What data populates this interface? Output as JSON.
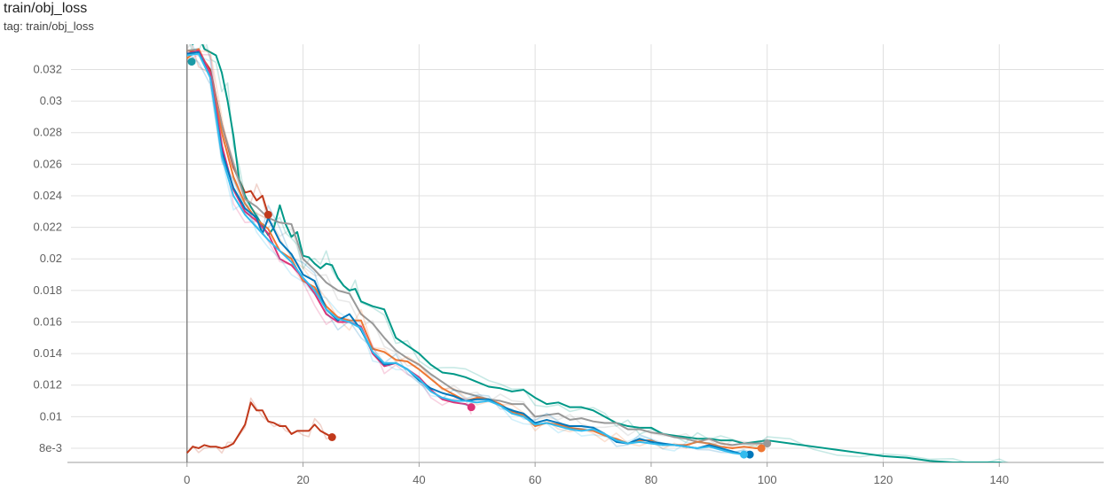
{
  "header": {
    "title": "train/obj_loss",
    "tag": "tag: train/obj_loss"
  },
  "chart_data": {
    "type": "line",
    "title": "train/obj_loss",
    "xlabel": "",
    "ylabel": "",
    "xlim": [
      -20,
      158
    ],
    "ylim": [
      0.0071,
      0.0336
    ],
    "grid": true,
    "legend": "none",
    "x_ticks": [
      0,
      20,
      40,
      60,
      80,
      100,
      120,
      140
    ],
    "y_ticks": [
      0.008,
      0.01,
      0.012,
      0.014,
      0.016,
      0.018,
      0.02,
      0.022,
      0.024,
      0.026,
      0.028,
      0.03,
      0.032
    ],
    "y_tick_labels": [
      "8e-3",
      "0.01",
      "0.012",
      "0.014",
      "0.016",
      "0.018",
      "0.02",
      "0.022",
      "0.024",
      "0.026",
      "0.028",
      "0.03",
      "0.032"
    ],
    "series": [
      {
        "color": "#c1391b",
        "x": [
          0,
          1,
          2,
          3,
          4,
          5,
          6,
          7,
          8,
          9,
          10,
          11,
          12,
          13,
          14,
          15,
          16,
          17,
          18,
          19,
          20,
          21,
          22,
          23,
          24,
          25
        ],
        "y": [
          0.0077,
          0.0081,
          0.008,
          0.0082,
          0.0081,
          0.0081,
          0.008,
          0.0081,
          0.0083,
          0.0089,
          0.0095,
          0.0109,
          0.0104,
          0.0104,
          0.0097,
          0.0096,
          0.0094,
          0.0094,
          0.0089,
          0.0091,
          0.0091,
          0.0091,
          0.0095,
          0.0091,
          0.0089,
          0.0087
        ]
      },
      {
        "color": "#c1391b",
        "x": [
          0,
          2,
          4,
          6,
          8,
          10,
          11,
          12,
          13,
          14
        ],
        "y": [
          0.0332,
          0.0331,
          0.032,
          0.0285,
          0.0258,
          0.0242,
          0.0243,
          0.0237,
          0.024,
          0.0228
        ]
      },
      {
        "color": "#009988",
        "x": [
          0,
          1,
          2,
          3,
          4,
          5,
          6,
          7,
          8,
          9,
          10,
          11,
          12,
          13,
          14,
          15,
          16,
          17,
          18,
          19,
          20,
          21,
          22,
          23,
          24,
          25,
          26,
          27,
          28,
          29,
          30,
          32,
          34,
          36,
          38,
          40,
          42,
          44,
          46,
          48,
          50,
          52,
          54,
          56,
          58,
          60,
          62,
          64,
          66,
          68,
          70,
          72,
          74,
          76,
          78,
          80,
          82,
          84,
          86,
          88,
          90,
          92,
          94,
          96,
          98,
          100,
          104,
          108,
          112,
          116,
          120,
          124,
          128,
          132,
          136,
          140,
          144,
          146,
          148,
          149
        ],
        "y": [
          0.034,
          0.0336,
          0.0342,
          0.0333,
          0.0331,
          0.0329,
          0.0318,
          0.03,
          0.0278,
          0.025,
          0.024,
          0.0233,
          0.0227,
          0.0221,
          0.0215,
          0.022,
          0.0234,
          0.0222,
          0.0214,
          0.0217,
          0.0202,
          0.0201,
          0.0197,
          0.0194,
          0.0197,
          0.0196,
          0.0188,
          0.0183,
          0.018,
          0.0181,
          0.0173,
          0.017,
          0.0168,
          0.015,
          0.0145,
          0.014,
          0.0133,
          0.0128,
          0.0127,
          0.0125,
          0.0122,
          0.0119,
          0.0118,
          0.0116,
          0.0117,
          0.0112,
          0.0108,
          0.0109,
          0.0106,
          0.0106,
          0.0104,
          0.01,
          0.0096,
          0.0094,
          0.0093,
          0.0093,
          0.0089,
          0.0088,
          0.0087,
          0.0086,
          0.0086,
          0.0085,
          0.0085,
          0.0083,
          0.0084,
          0.0085,
          0.0083,
          0.0081,
          0.0079,
          0.0077,
          0.0075,
          0.0074,
          0.0072,
          0.0071,
          0.0071,
          0.0071,
          0.0069,
          0.0068,
          0.0068,
          0.0068
        ]
      },
      {
        "color": "#999999",
        "x": [
          0,
          2,
          4,
          6,
          8,
          10,
          12,
          14,
          16,
          18,
          20,
          22,
          24,
          26,
          28,
          30,
          32,
          34,
          36,
          38,
          40,
          42,
          44,
          46,
          48,
          50,
          52,
          54,
          56,
          58,
          60,
          62,
          64,
          66,
          68,
          70,
          72,
          74,
          76,
          78,
          80,
          82,
          84,
          86,
          88,
          90,
          92,
          94,
          96,
          98,
          100
        ],
        "y": [
          0.0332,
          0.0333,
          0.0318,
          0.0285,
          0.026,
          0.0238,
          0.0233,
          0.0226,
          0.0223,
          0.0222,
          0.02,
          0.0193,
          0.0185,
          0.018,
          0.0178,
          0.0165,
          0.0159,
          0.015,
          0.0142,
          0.0137,
          0.0133,
          0.0127,
          0.0122,
          0.0117,
          0.0115,
          0.0113,
          0.0111,
          0.011,
          0.0108,
          0.0108,
          0.01,
          0.0101,
          0.0102,
          0.0098,
          0.0099,
          0.0097,
          0.0096,
          0.0096,
          0.0092,
          0.0092,
          0.009,
          0.0089,
          0.0087,
          0.0086,
          0.0084,
          0.0086,
          0.0083,
          0.0082,
          0.0083,
          0.0083,
          0.0083
        ]
      },
      {
        "color": "#ee7733",
        "x": [
          0,
          2,
          4,
          6,
          8,
          10,
          12,
          14,
          16,
          18,
          20,
          22,
          24,
          26,
          28,
          30,
          32,
          34,
          36,
          38,
          40,
          42,
          44,
          46,
          48,
          50,
          52,
          54,
          56,
          58,
          60,
          62,
          64,
          66,
          68,
          70,
          72,
          74,
          76,
          78,
          80,
          82,
          84,
          86,
          88,
          90,
          92,
          94,
          96,
          98,
          99
        ],
        "y": [
          0.0327,
          0.0333,
          0.0318,
          0.028,
          0.0252,
          0.0235,
          0.0225,
          0.0219,
          0.0205,
          0.02,
          0.0186,
          0.0182,
          0.017,
          0.0163,
          0.0161,
          0.0161,
          0.0143,
          0.0141,
          0.0136,
          0.0135,
          0.013,
          0.0124,
          0.0118,
          0.0114,
          0.011,
          0.0112,
          0.0111,
          0.0108,
          0.0103,
          0.0101,
          0.0094,
          0.0096,
          0.0095,
          0.0093,
          0.0092,
          0.0091,
          0.0088,
          0.0086,
          0.0083,
          0.0085,
          0.0085,
          0.0082,
          0.0082,
          0.0082,
          0.0084,
          0.0083,
          0.0081,
          0.008,
          0.0081,
          0.008,
          0.008
        ]
      },
      {
        "color": "#dd3377",
        "x": [
          0,
          2,
          4,
          6,
          8,
          10,
          12,
          14,
          16,
          18,
          20,
          22,
          24,
          26,
          28,
          30,
          32,
          34,
          36,
          38,
          40,
          42,
          44,
          46,
          48,
          49
        ],
        "y": [
          0.033,
          0.0332,
          0.0318,
          0.0272,
          0.0244,
          0.023,
          0.0224,
          0.0216,
          0.02,
          0.0196,
          0.0188,
          0.0178,
          0.0165,
          0.016,
          0.016,
          0.0157,
          0.014,
          0.0132,
          0.0134,
          0.013,
          0.0125,
          0.0117,
          0.0111,
          0.0109,
          0.0108,
          0.0106
        ]
      },
      {
        "color": "#0077bb",
        "x": [
          0,
          2,
          4,
          6,
          8,
          10,
          12,
          13,
          14,
          16,
          18,
          20,
          22,
          24,
          26,
          28,
          30,
          32,
          34,
          36,
          38,
          40,
          42,
          44,
          46,
          48,
          50,
          52,
          54,
          56,
          58,
          60,
          62,
          64,
          66,
          68,
          70,
          72,
          74,
          76,
          78,
          80,
          82,
          84,
          86,
          88,
          90,
          92,
          94,
          96,
          97
        ],
        "y": [
          0.033,
          0.0331,
          0.0315,
          0.0268,
          0.0245,
          0.0232,
          0.0226,
          0.0216,
          0.0226,
          0.0211,
          0.0203,
          0.019,
          0.0186,
          0.0168,
          0.0161,
          0.0165,
          0.0155,
          0.0141,
          0.0133,
          0.0134,
          0.013,
          0.0123,
          0.0118,
          0.0115,
          0.0113,
          0.011,
          0.0111,
          0.0111,
          0.0107,
          0.0104,
          0.0102,
          0.0096,
          0.0098,
          0.0096,
          0.0094,
          0.0094,
          0.0093,
          0.0089,
          0.0084,
          0.0083,
          0.0086,
          0.0084,
          0.0083,
          0.0082,
          0.0081,
          0.008,
          0.0082,
          0.008,
          0.0078,
          0.0076,
          0.0076
        ]
      },
      {
        "color": "#33bbee",
        "x": [
          0,
          2,
          4,
          6,
          8,
          10,
          12,
          14,
          16,
          18,
          20,
          22,
          24,
          26,
          28,
          30,
          32,
          34,
          36,
          38,
          40,
          42,
          44,
          46,
          48,
          50,
          52,
          54,
          56,
          58,
          60,
          62,
          64,
          66,
          68,
          70,
          72,
          74,
          76,
          78,
          80,
          82,
          84,
          86,
          88,
          90,
          92,
          94,
          96
        ],
        "y": [
          0.0329,
          0.033,
          0.0315,
          0.0265,
          0.024,
          0.0228,
          0.022,
          0.0212,
          0.0205,
          0.0198,
          0.0188,
          0.018,
          0.0168,
          0.0162,
          0.016,
          0.0156,
          0.0141,
          0.0134,
          0.0134,
          0.013,
          0.0124,
          0.0116,
          0.0112,
          0.011,
          0.011,
          0.0109,
          0.011,
          0.0107,
          0.0102,
          0.01,
          0.0095,
          0.0096,
          0.0094,
          0.0092,
          0.0091,
          0.0092,
          0.0089,
          0.0085,
          0.0083,
          0.0084,
          0.0083,
          0.0082,
          0.0082,
          0.0081,
          0.008,
          0.0081,
          0.0079,
          0.0077,
          0.0076
        ]
      }
    ]
  }
}
